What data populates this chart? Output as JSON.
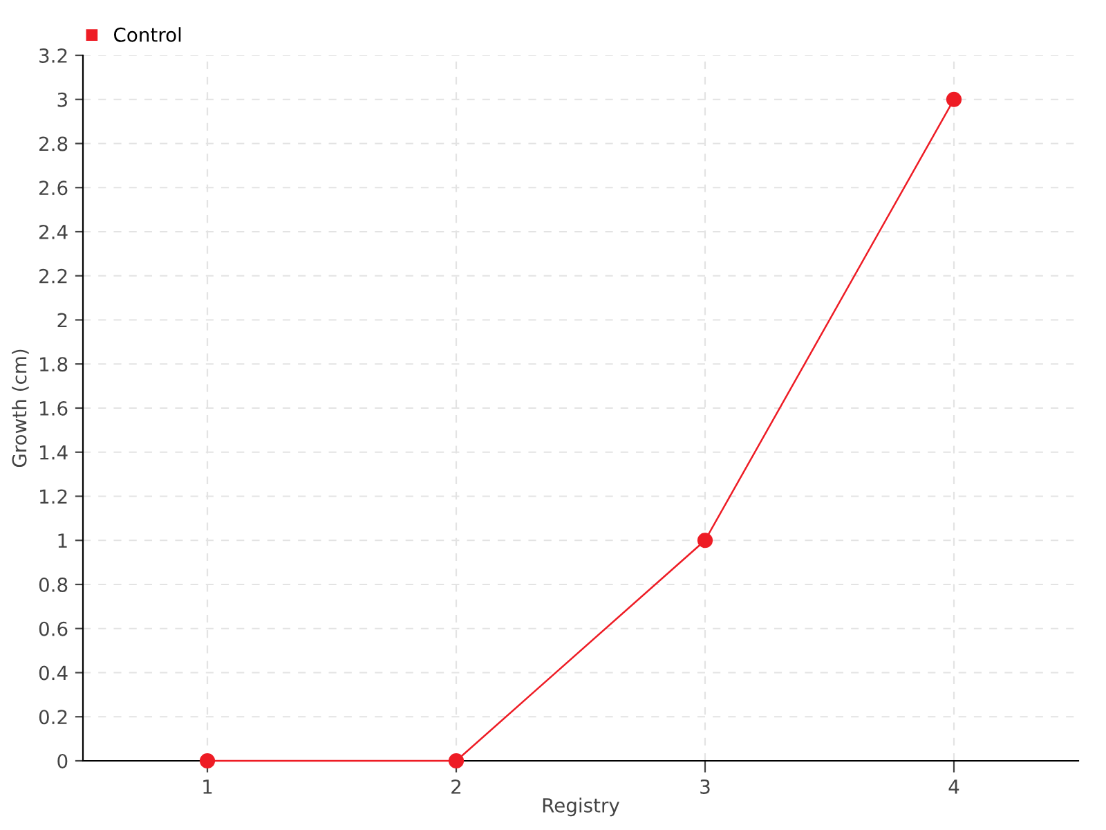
{
  "chart_data": {
    "type": "line",
    "xlabel": "Registry",
    "ylabel": "Growth (cm)",
    "x": [
      1,
      2,
      3,
      4
    ],
    "series": [
      {
        "name": "Control",
        "color": "#ee1c25",
        "values": [
          0,
          0,
          1,
          3
        ]
      }
    ],
    "xlim": [
      0.5,
      4.5
    ],
    "xticks": [
      1,
      2,
      3,
      4
    ],
    "ylim": [
      0,
      3.2
    ],
    "yticks": [
      0,
      0.2,
      0.4,
      0.6,
      0.8,
      1,
      1.2,
      1.4,
      1.6,
      1.8,
      2,
      2.2,
      2.4,
      2.6,
      2.8,
      3,
      3.2
    ],
    "grid": true,
    "legend": "top left",
    "marker": "circle",
    "line_style": "solid"
  }
}
